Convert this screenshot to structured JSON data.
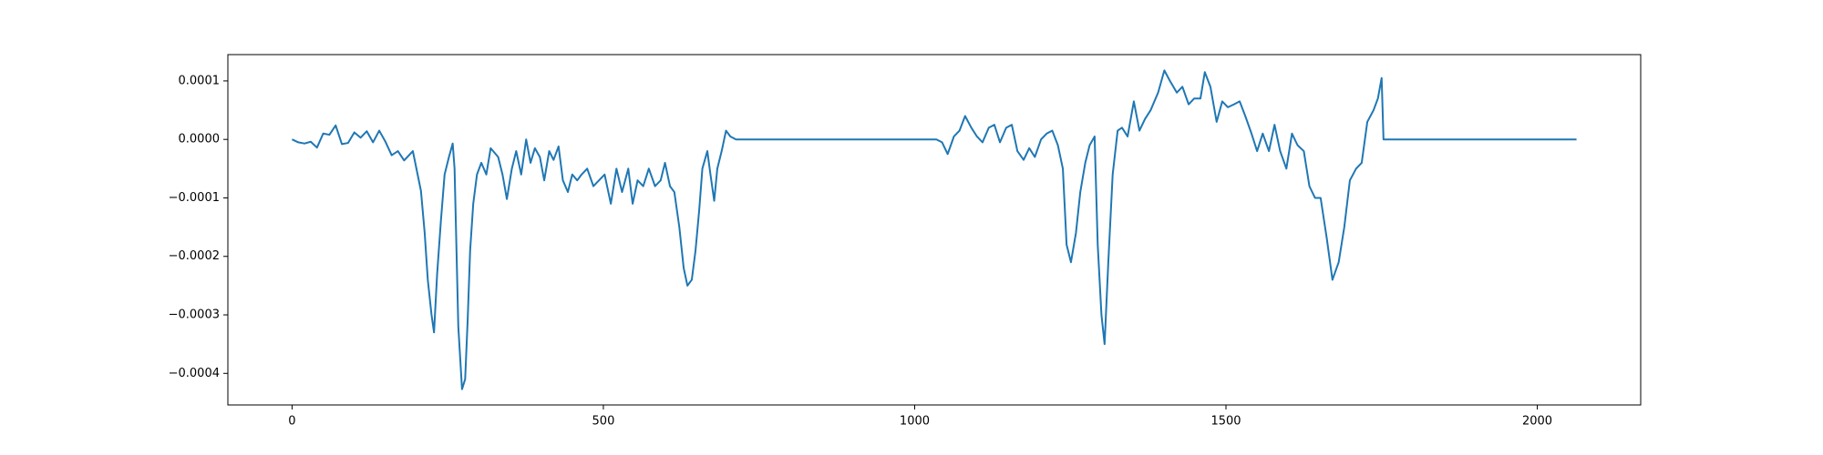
{
  "chart_data": {
    "type": "line",
    "x": [
      0,
      10,
      20,
      30,
      40,
      50,
      60,
      70,
      80,
      90,
      100,
      110,
      120,
      130,
      140,
      150,
      160,
      170,
      180,
      194,
      207,
      213,
      218,
      224,
      228,
      233,
      239,
      245,
      252,
      258,
      261,
      267,
      273,
      278,
      282,
      286,
      291,
      297,
      304,
      312,
      319,
      331,
      338,
      345,
      353,
      360,
      368,
      376,
      383,
      390,
      398,
      405,
      413,
      420,
      428,
      435,
      443,
      450,
      458,
      465,
      474,
      484,
      493,
      502,
      512,
      521,
      530,
      540,
      547,
      555,
      564,
      573,
      583,
      592,
      599,
      607,
      614,
      622,
      629,
      635,
      642,
      648,
      654,
      659,
      667,
      672,
      678,
      683,
      690,
      697,
      704,
      713,
      1035,
      1044,
      1053,
      1063,
      1072,
      1081,
      1091,
      1100,
      1109,
      1119,
      1128,
      1137,
      1147,
      1156,
      1165,
      1175,
      1184,
      1193,
      1203,
      1212,
      1221,
      1230,
      1238,
      1244,
      1251,
      1259,
      1266,
      1274,
      1281,
      1289,
      1294,
      1300,
      1305,
      1311,
      1318,
      1326,
      1333,
      1342,
      1352,
      1361,
      1370,
      1379,
      1391,
      1401,
      1410,
      1421,
      1430,
      1440,
      1449,
      1459,
      1466,
      1475,
      1485,
      1494,
      1503,
      1513,
      1522,
      1531,
      1541,
      1550,
      1559,
      1569,
      1578,
      1587,
      1597,
      1606,
      1615,
      1625,
      1634,
      1643,
      1652,
      1662,
      1671,
      1681,
      1690,
      1699,
      1709,
      1718,
      1727,
      1737,
      1744,
      1750,
      1753,
      2063
    ],
    "series": [
      {
        "color": "#1f77b4",
        "values": [
          0,
          -5e-06,
          -7e-06,
          -4e-06,
          -1.4e-05,
          1e-05,
          8e-06,
          2.4e-05,
          -8e-06,
          -6e-06,
          1.2e-05,
          3e-06,
          1.4e-05,
          -5e-06,
          1.5e-05,
          -4e-06,
          -2.7e-05,
          -2e-05,
          -3.6e-05,
          -2e-05,
          -8.8e-05,
          -0.00016,
          -0.00024,
          -0.0003,
          -0.00033,
          -0.00023,
          -0.00014,
          -6e-05,
          -3e-05,
          -7e-06,
          -5e-05,
          -0.00032,
          -0.000427,
          -0.00041,
          -0.00031,
          -0.00019,
          -0.00011,
          -6e-05,
          -4e-05,
          -6e-05,
          -1.5e-05,
          -3e-05,
          -6e-05,
          -0.000102,
          -5e-05,
          -2e-05,
          -6e-05,
          0,
          -4e-05,
          -1.5e-05,
          -3e-05,
          -7e-05,
          -2e-05,
          -3.5e-05,
          -1.2e-05,
          -7e-05,
          -9e-05,
          -6e-05,
          -7e-05,
          -6e-05,
          -5e-05,
          -8e-05,
          -7e-05,
          -6e-05,
          -0.00011,
          -5e-05,
          -9e-05,
          -5e-05,
          -0.00011,
          -7e-05,
          -8e-05,
          -5e-05,
          -8e-05,
          -7e-05,
          -4e-05,
          -8e-05,
          -9e-05,
          -0.00015,
          -0.00022,
          -0.00025,
          -0.00024,
          -0.00019,
          -0.00012,
          -5e-05,
          -2e-05,
          -6e-05,
          -0.000105,
          -5e-05,
          -2e-05,
          1.5e-05,
          5e-06,
          0,
          0,
          -5e-06,
          -2.5e-05,
          5e-06,
          1.5e-05,
          4e-05,
          2e-05,
          5e-06,
          -5e-06,
          2e-05,
          2.5e-05,
          -5e-06,
          2e-05,
          2.5e-05,
          -2e-05,
          -3.5e-05,
          -1.5e-05,
          -3e-05,
          0,
          1e-05,
          1.5e-05,
          -1e-05,
          -5e-05,
          -0.00018,
          -0.00021,
          -0.00016,
          -9e-05,
          -4e-05,
          -1e-05,
          5e-06,
          -0.00018,
          -0.0003,
          -0.00035,
          -0.00021,
          -6e-05,
          1.5e-05,
          2e-05,
          5e-06,
          6.5e-05,
          1.5e-05,
          3.5e-05,
          5e-05,
          8e-05,
          0.000118,
          0.0001,
          8e-05,
          9e-05,
          6e-05,
          7e-05,
          7e-05,
          0.000115,
          9e-05,
          3e-05,
          6.5e-05,
          5.5e-05,
          6e-05,
          6.5e-05,
          4e-05,
          1e-05,
          -2e-05,
          1e-05,
          -2e-05,
          2.5e-05,
          -2e-05,
          -5e-05,
          1e-05,
          -1e-05,
          -2e-05,
          -8e-05,
          -0.0001,
          -0.0001,
          -0.00017,
          -0.00024,
          -0.00021,
          -0.00015,
          -7e-05,
          -5e-05,
          -4e-05,
          3e-05,
          5e-05,
          7e-05,
          0.000105,
          0,
          0
        ]
      }
    ],
    "xlim": [
      -103.1,
      2166.1
    ],
    "xticks": [
      0,
      500,
      1000,
      1500,
      2000
    ],
    "ylim": [
      -0.000454,
      0.000145
    ],
    "yticks": [
      {
        "value": -0.0004,
        "label": "−0.0004"
      },
      {
        "value": -0.0003,
        "label": "−0.0003"
      },
      {
        "value": -0.0002,
        "label": "−0.0002"
      },
      {
        "value": -0.0001,
        "label": "−0.0001"
      },
      {
        "value": 0,
        "label": "0.0000"
      },
      {
        "value": 0.0001,
        "label": "0.0001"
      }
    ]
  }
}
